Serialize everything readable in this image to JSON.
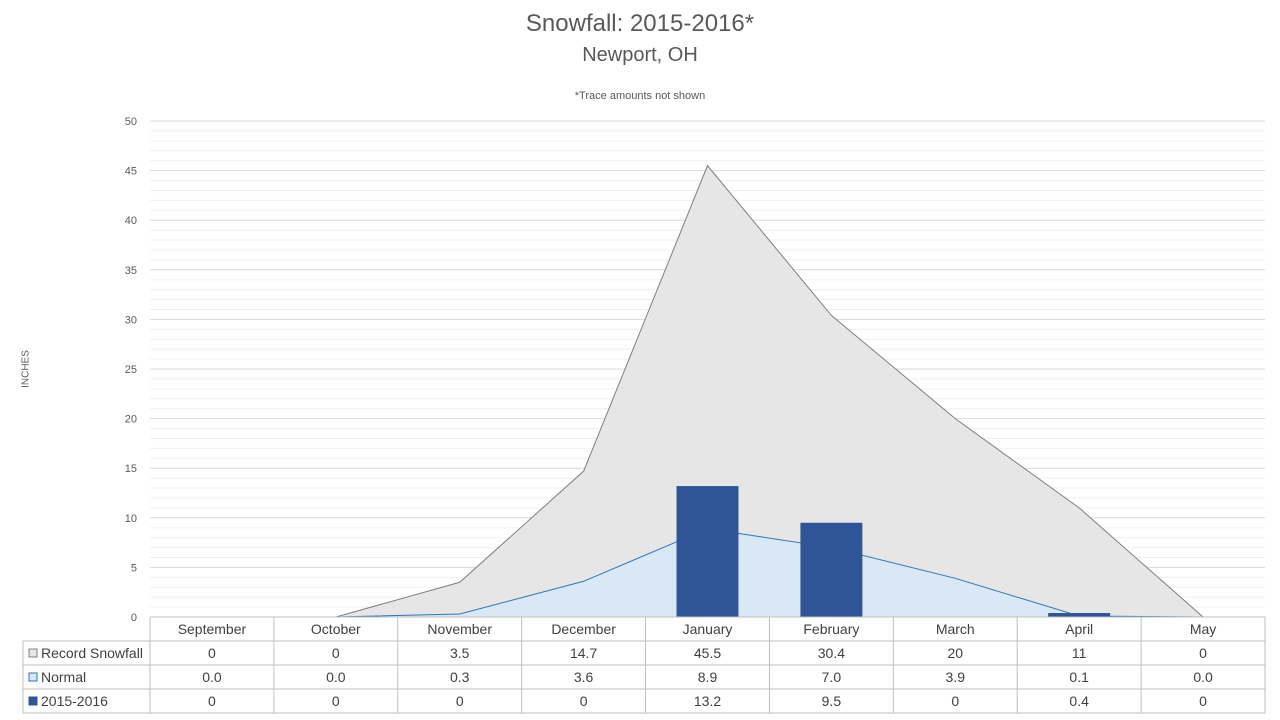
{
  "chart_data": {
    "type": "bar",
    "title": "Snowfall: 2015-2016*",
    "subtitle": "Newport, OH",
    "note": "*Trace amounts not shown",
    "ylabel": "INCHES",
    "ylim": [
      0,
      50
    ],
    "yticks": [
      "0",
      "5",
      "10",
      "15",
      "20",
      "25",
      "30",
      "35",
      "40",
      "45",
      "50"
    ],
    "categories": [
      "September",
      "October",
      "November",
      "December",
      "January",
      "February",
      "March",
      "April",
      "May"
    ],
    "grid": true,
    "legend": "data-table",
    "series": [
      {
        "name": "Record Snowfall",
        "kind": "area",
        "color": "#e6e6e6",
        "stroke": "#7f7f7f",
        "values": [
          0,
          0,
          3.5,
          14.7,
          45.5,
          30.4,
          20,
          11,
          0
        ],
        "labels": [
          "0",
          "0",
          "3.5",
          "14.7",
          "45.5",
          "30.4",
          "20",
          "11",
          "0"
        ]
      },
      {
        "name": "Normal",
        "kind": "area",
        "color": "#dae8f6",
        "stroke": "#2e75b6",
        "values": [
          0.0,
          0.0,
          0.3,
          3.6,
          8.9,
          7.0,
          3.9,
          0.1,
          0.0
        ],
        "labels": [
          "0.0",
          "0.0",
          "0.3",
          "3.6",
          "8.9",
          "7.0",
          "3.9",
          "0.1",
          "0.0"
        ]
      },
      {
        "name": "2015-2016",
        "kind": "bar",
        "color": "#2f5597",
        "values": [
          0,
          0,
          0,
          0,
          13.2,
          9.5,
          0,
          0.4,
          0
        ],
        "labels": [
          "0",
          "0",
          "0",
          "0",
          "13.2",
          "9.5",
          "0",
          "0.4",
          "0"
        ]
      }
    ]
  }
}
